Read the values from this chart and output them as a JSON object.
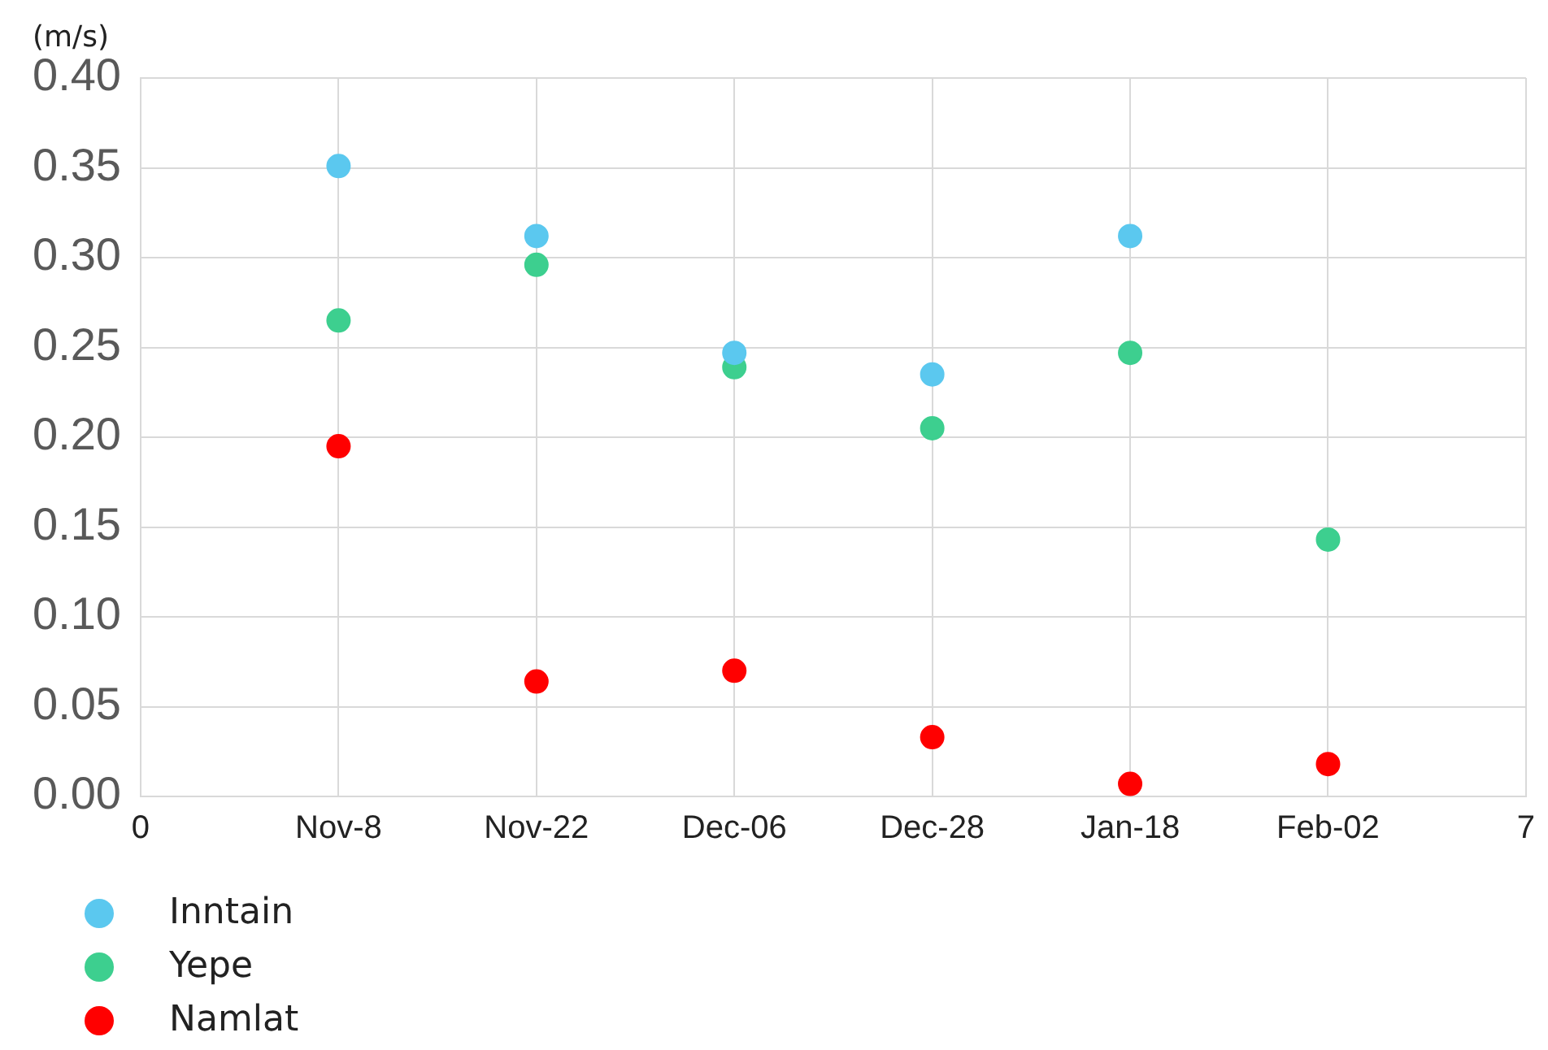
{
  "chart_data": {
    "type": "scatter",
    "ylabel": "(m/s)",
    "categories": [
      "0",
      "Nov-8",
      "Nov-22",
      "Dec-06",
      "Dec-28",
      "Jan-18",
      "Feb-02",
      "7"
    ],
    "ylim": [
      0,
      0.4
    ],
    "yticks": [
      {
        "value": 0,
        "label": "0.00"
      },
      {
        "value": 0.05,
        "label": "0.05"
      },
      {
        "value": 0.1,
        "label": "0.10"
      },
      {
        "value": 0.15,
        "label": "0.15"
      },
      {
        "value": 0.2,
        "label": "0.20"
      },
      {
        "value": 0.25,
        "label": "0.25"
      },
      {
        "value": 0.3,
        "label": "0.30"
      },
      {
        "value": 0.35,
        "label": "0.35"
      },
      {
        "value": 0.4,
        "label": "0.40"
      }
    ],
    "grid": true,
    "legend": "bottom left",
    "marker": "circle",
    "series": [
      {
        "name": "Inntain",
        "color": "#5bc8ef",
        "values": [
          null,
          0.351,
          0.312,
          0.247,
          0.235,
          0.312,
          null,
          null
        ]
      },
      {
        "name": "Yepe",
        "color": "#3dcf8f",
        "values": [
          null,
          0.265,
          0.296,
          0.239,
          0.205,
          0.247,
          0.143,
          null
        ]
      },
      {
        "name": "Namlat",
        "color": "#ff0000",
        "values": [
          null,
          0.195,
          0.064,
          0.07,
          0.033,
          0.007,
          0.018,
          null
        ]
      }
    ]
  }
}
